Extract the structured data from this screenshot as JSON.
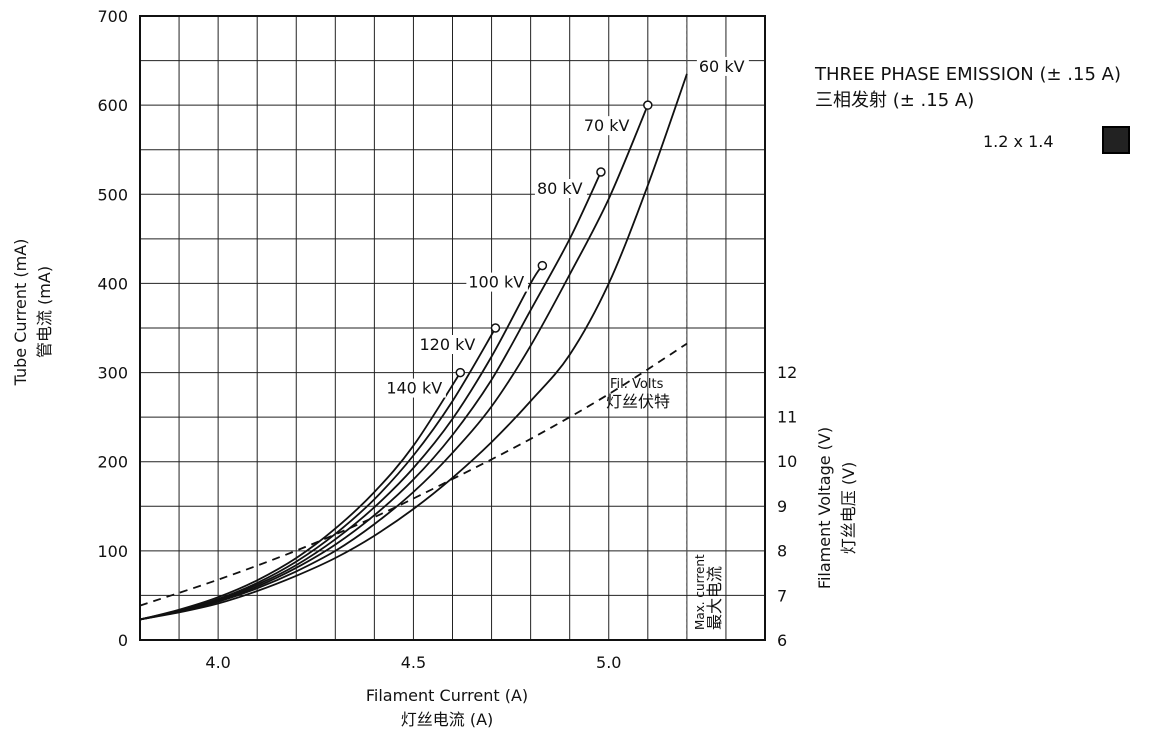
{
  "chart_data": {
    "type": "line",
    "x_axis": {
      "label_en": "Filament Current (A)",
      "label_zh": "灯丝电流 (A)",
      "range": [
        3.8,
        5.2
      ],
      "ticks": [
        4.0,
        4.5,
        5.0
      ],
      "tick_labels": [
        "4.0",
        "4.5",
        "5.0"
      ]
    },
    "y_axis_left": {
      "label_en": "Tube Current (mA)",
      "label_zh": "管电流 (mA)",
      "range": [
        0,
        700
      ],
      "ticks": [
        0,
        100,
        200,
        300,
        400,
        500,
        600,
        700
      ],
      "tick_labels": [
        "0",
        "100",
        "200",
        "300",
        "400",
        "500",
        "600",
        "700"
      ]
    },
    "y_axis_right": {
      "label_en": "Filament Voltage (V)",
      "label_zh": "灯丝电压 (V)",
      "range": [
        6,
        12
      ],
      "ticks": [
        6,
        7,
        8,
        9,
        10,
        11,
        12
      ],
      "tick_labels": [
        "6",
        "7",
        "8",
        "9",
        "10",
        "11",
        "12"
      ]
    },
    "grid": true,
    "series": [
      {
        "name": "60 kV",
        "axis": "left",
        "style": "solid",
        "x": [
          3.8,
          3.9,
          4.0,
          4.1,
          4.2,
          4.3,
          4.4,
          4.5,
          4.6,
          4.7,
          4.8,
          4.9,
          5.0,
          5.1,
          5.2
        ],
        "y": [
          23,
          31,
          41,
          55,
          72,
          92,
          117,
          147,
          182,
          222,
          268,
          320,
          400,
          510,
          635
        ],
        "end_marker": false
      },
      {
        "name": "70 kV",
        "axis": "left",
        "style": "solid",
        "x": [
          3.8,
          3.9,
          4.0,
          4.1,
          4.2,
          4.3,
          4.4,
          4.5,
          4.6,
          4.7,
          4.8,
          4.9,
          5.0,
          5.1
        ],
        "y": [
          23,
          32,
          43,
          58,
          77,
          100,
          130,
          166,
          210,
          262,
          330,
          410,
          495,
          600
        ],
        "end_marker": true
      },
      {
        "name": "80 kV",
        "axis": "left",
        "style": "solid",
        "x": [
          3.8,
          3.9,
          4.0,
          4.1,
          4.2,
          4.3,
          4.4,
          4.5,
          4.6,
          4.7,
          4.8,
          4.9,
          4.98
        ],
        "y": [
          23,
          32,
          44,
          60,
          81,
          107,
          140,
          180,
          230,
          292,
          370,
          450,
          525
        ],
        "end_marker": true
      },
      {
        "name": "100 kV",
        "axis": "left",
        "style": "solid",
        "x": [
          3.8,
          3.9,
          4.0,
          4.1,
          4.2,
          4.3,
          4.4,
          4.5,
          4.6,
          4.7,
          4.8,
          4.83
        ],
        "y": [
          23,
          33,
          45,
          62,
          84,
          113,
          149,
          193,
          248,
          318,
          400,
          420
        ],
        "end_marker": true
      },
      {
        "name": "120 kV",
        "axis": "left",
        "style": "solid",
        "x": [
          3.8,
          3.9,
          4.0,
          4.1,
          4.2,
          4.3,
          4.4,
          4.5,
          4.6,
          4.71
        ],
        "y": [
          23,
          33,
          46,
          64,
          88,
          119,
          158,
          207,
          268,
          350
        ],
        "end_marker": true
      },
      {
        "name": "140 kV",
        "axis": "left",
        "style": "solid",
        "x": [
          3.8,
          3.9,
          4.0,
          4.1,
          4.2,
          4.3,
          4.4,
          4.5,
          4.62
        ],
        "y": [
          23,
          34,
          48,
          67,
          92,
          125,
          166,
          218,
          300
        ],
        "end_marker": true
      },
      {
        "name": "Fil. Volts",
        "name_zh": "灯丝伏特",
        "axis": "right",
        "style": "dashed",
        "x": [
          3.8,
          4.0,
          4.2,
          4.4,
          4.6,
          4.8,
          5.0,
          5.2
        ],
        "y": [
          6.77,
          7.35,
          8.0,
          8.75,
          9.6,
          10.5,
          11.5,
          12.63
        ],
        "end_marker": false
      }
    ],
    "vertical_line": {
      "x": 5.2,
      "style": "dotted",
      "label_en": "Max. current",
      "label_zh": "最大电流"
    },
    "legend": {
      "position": "top-right",
      "title_en": "THREE PHASE EMISSION (± .15 A)",
      "title_zh": "三相发射 (± .15 A)",
      "entry": "1.2 x 1.4",
      "swatch_color": "#222222"
    }
  }
}
